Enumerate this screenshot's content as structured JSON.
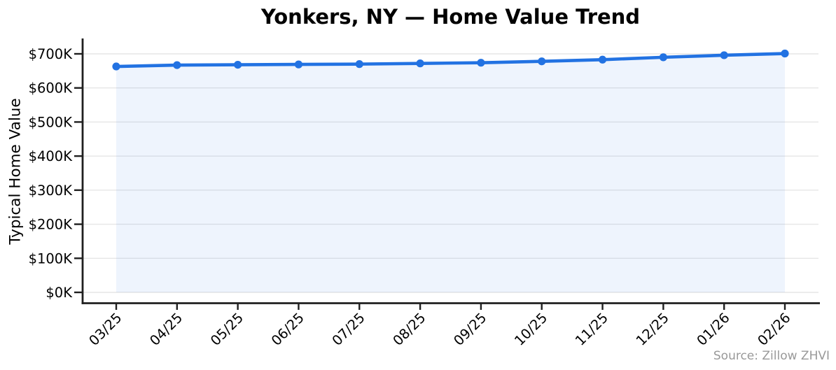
{
  "title": "Yonkers, NY — Home Value Trend",
  "source_note": "Source: Zillow ZHVI",
  "colors": {
    "line": "#2272e2",
    "fill": "rgba(34,114,226,0.08)",
    "grid": "#e6e6e6",
    "axis": "#1f1f1f",
    "tick_text": "#000000",
    "source_text": "#999999",
    "background": "#ffffff"
  },
  "chart_data": {
    "type": "area",
    "title": "Yonkers, NY — Home Value Trend",
    "xlabel": "",
    "ylabel": "Typical Home Value",
    "x": [
      "03/25",
      "04/25",
      "05/25",
      "06/25",
      "07/25",
      "08/25",
      "09/25",
      "10/25",
      "11/25",
      "12/25",
      "01/26",
      "02/26"
    ],
    "series": [
      {
        "name": "Typical Home Value",
        "values": [
          663000,
          667000,
          668000,
          669000,
          670000,
          672000,
          674000,
          678000,
          683000,
          690000,
          696000,
          701000
        ]
      }
    ],
    "ylim": [
      0,
      747000
    ],
    "yticks": [
      0,
      100000,
      200000,
      300000,
      400000,
      500000,
      600000,
      700000
    ],
    "ytick_labels": [
      "$0K",
      "$100K",
      "$200K",
      "$300K",
      "$400K",
      "$500K",
      "$600K",
      "$700K"
    ],
    "grid": true,
    "legend": "none",
    "marker": "circle",
    "annotations": [
      "Source: Zillow ZHVI"
    ]
  }
}
